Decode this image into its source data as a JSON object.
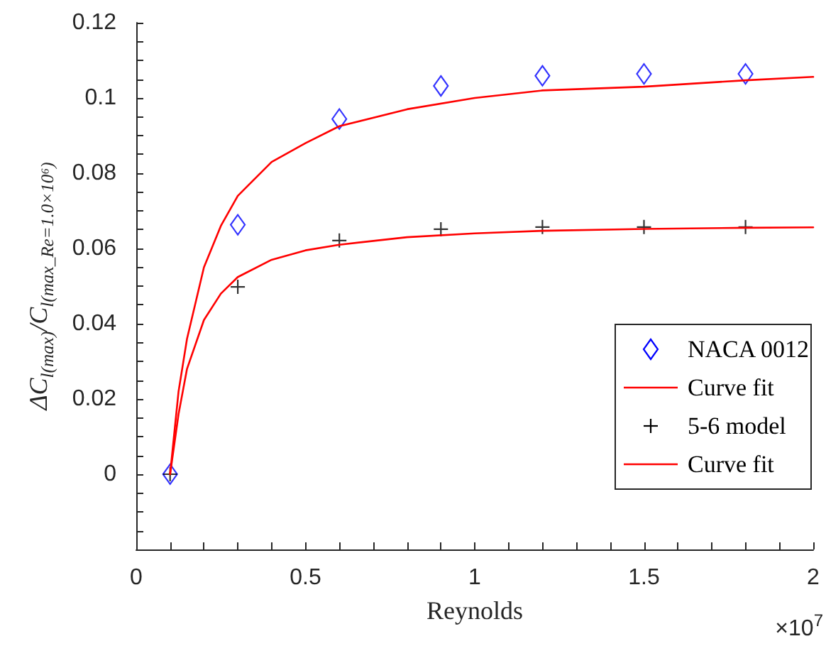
{
  "chart_data": {
    "type": "scatter",
    "xlabel": "Reynolds",
    "ylabel": "ΔC$_{l(max)}$/C$_{l(max_Re=1.0×10⁶)}$",
    "annotations": [
      "×10$^{7}$"
    ],
    "xlim": [
      0,
      2
    ],
    "ylim": [
      -0.02,
      0.12
    ],
    "xticks": [
      0,
      {
        "value": 0.1,
        "label": null
      },
      {
        "value": 0.2,
        "label": null
      },
      {
        "value": 0.3,
        "label": null
      },
      {
        "value": 0.4,
        "label": null
      },
      0.5,
      {
        "value": 0.6,
        "label": null
      },
      {
        "value": 0.7,
        "label": null
      },
      {
        "value": 0.8,
        "label": null
      },
      {
        "value": 0.9,
        "label": null
      },
      1,
      {
        "value": 1.1,
        "label": null
      },
      {
        "value": 1.2,
        "label": null
      },
      {
        "value": 1.3,
        "label": null
      },
      {
        "value": 1.4,
        "label": null
      },
      1.5,
      {
        "value": 1.6,
        "label": null
      },
      {
        "value": 1.7,
        "label": null
      },
      {
        "value": 1.8,
        "label": null
      },
      {
        "value": 1.9,
        "label": null
      },
      2
    ],
    "yticks": [
      {
        "value": -0.015,
        "label": null
      },
      {
        "value": -0.01,
        "label": null
      },
      {
        "value": -0.005,
        "label": null
      },
      0,
      {
        "value": 0.005,
        "label": null
      },
      {
        "value": 0.01,
        "label": null
      },
      {
        "value": 0.015,
        "label": null
      },
      0.02,
      {
        "value": 0.025,
        "label": null
      },
      {
        "value": 0.03,
        "label": null
      },
      {
        "value": 0.035,
        "label": null
      },
      0.04,
      {
        "value": 0.045,
        "label": null
      },
      {
        "value": 0.05,
        "label": null
      },
      {
        "value": 0.055,
        "label": null
      },
      0.06,
      {
        "value": 0.065,
        "label": null
      },
      {
        "value": 0.07,
        "label": null
      },
      {
        "value": 0.075,
        "label": null
      },
      0.08,
      {
        "value": 0.085,
        "label": null
      },
      {
        "value": 0.09,
        "label": null
      },
      {
        "value": 0.095,
        "label": null
      },
      0.1,
      {
        "value": 0.105,
        "label": null
      },
      {
        "value": 0.11,
        "label": null
      },
      {
        "value": 0.115,
        "label": null
      },
      0.12
    ],
    "grid": false,
    "legend": "right",
    "series": [
      {
        "name": "NACA 0012",
        "marker": "diamond",
        "color": "#0000ff",
        "x": [
          0.1,
          0.3,
          0.6,
          0.9,
          1.2,
          1.5,
          1.8
        ],
        "values": [
          0,
          0.0663,
          0.0944,
          0.1032,
          0.1059,
          0.1064,
          0.1064
        ]
      },
      {
        "name": "Curve fit",
        "type": "line",
        "marker": "none",
        "color": "#ff0000",
        "x": [
          0.1,
          0.125,
          0.15,
          0.2,
          0.25,
          0.3,
          0.4,
          0.5,
          0.6,
          0.8,
          1,
          1.2,
          1.5,
          1.8,
          2
        ],
        "values": [
          0,
          0.022,
          0.036,
          0.055,
          0.066,
          0.074,
          0.083,
          0.088,
          0.0925,
          0.097,
          0.1,
          0.102,
          0.103,
          0.1047,
          0.1056
        ]
      },
      {
        "name": "5-6 model",
        "marker": "cross",
        "color": "#000000",
        "x": [
          0.1,
          0.3,
          0.6,
          0.9,
          1.2,
          1.5,
          1.8
        ],
        "values": [
          0,
          0.0498,
          0.0621,
          0.0651,
          0.0657,
          0.0657,
          0.0657
        ]
      },
      {
        "name": "Curve fit",
        "type": "line",
        "marker": "none",
        "color": "#ff0000",
        "x": [
          0.1,
          0.125,
          0.15,
          0.2,
          0.25,
          0.3,
          0.4,
          0.5,
          0.6,
          0.8,
          1,
          1.2,
          1.5,
          1.8,
          2
        ],
        "values": [
          0,
          0.016,
          0.028,
          0.041,
          0.048,
          0.0524,
          0.057,
          0.0595,
          0.061,
          0.063,
          0.064,
          0.0647,
          0.0652,
          0.0655,
          0.0656
        ]
      }
    ]
  }
}
